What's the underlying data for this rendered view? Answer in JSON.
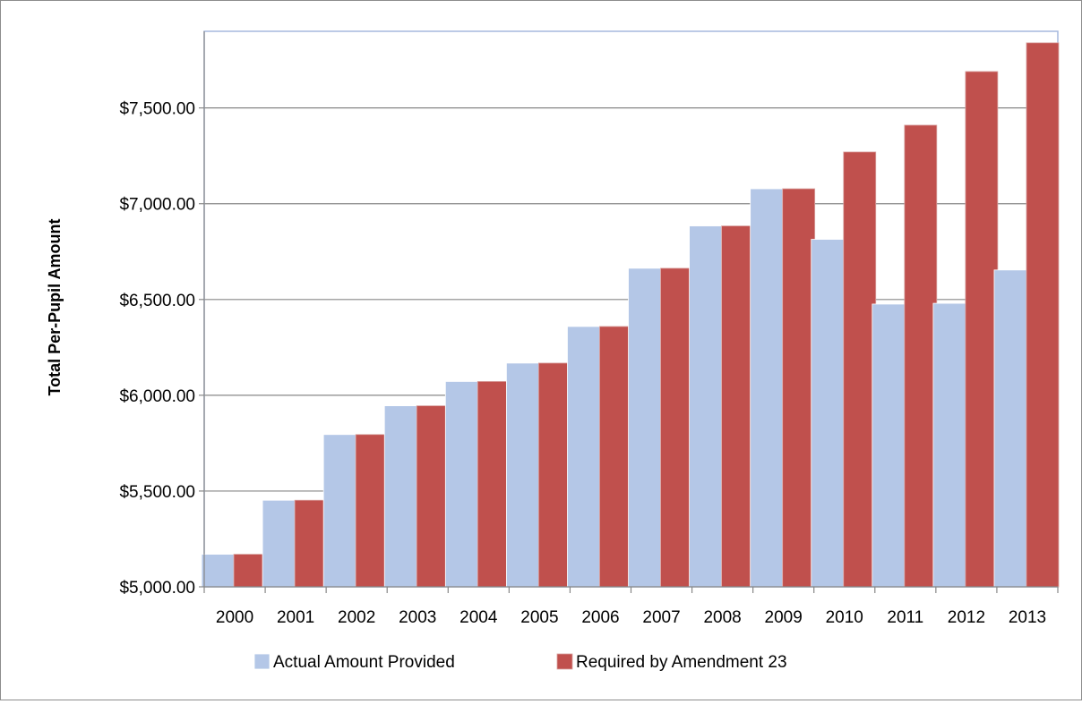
{
  "chart_data": {
    "type": "bar",
    "title": "",
    "xlabel": "",
    "ylabel": "Total Per-Pupil Amount",
    "ylim": [
      5000,
      7900
    ],
    "yticks": [
      5000,
      5500,
      6000,
      6500,
      7000,
      7500
    ],
    "ytick_labels": [
      "$5,000.00",
      "$5,500.00",
      "$6,000.00",
      "$6,500.00",
      "$7,000.00",
      "$7,500.00"
    ],
    "grid": true,
    "legend_position": "bottom",
    "categories": [
      "2000",
      "2001",
      "2002",
      "2003",
      "2004",
      "2005",
      "2006",
      "2007",
      "2008",
      "2009",
      "2010",
      "2011",
      "2012",
      "2013"
    ],
    "series": [
      {
        "name": "Actual Amount Provided",
        "color": "#b4c7e7",
        "values": [
          5170,
          5452,
          5795,
          5945,
          6072,
          6168,
          6359,
          6663,
          6884,
          7078,
          6814,
          6476,
          6480,
          6654
        ]
      },
      {
        "name": "Required by Amendment 23",
        "color": "#c0504d",
        "values": [
          5170,
          5452,
          5795,
          5945,
          6072,
          6168,
          6359,
          6663,
          6884,
          7078,
          7270,
          7410,
          7690,
          7840
        ]
      }
    ]
  }
}
